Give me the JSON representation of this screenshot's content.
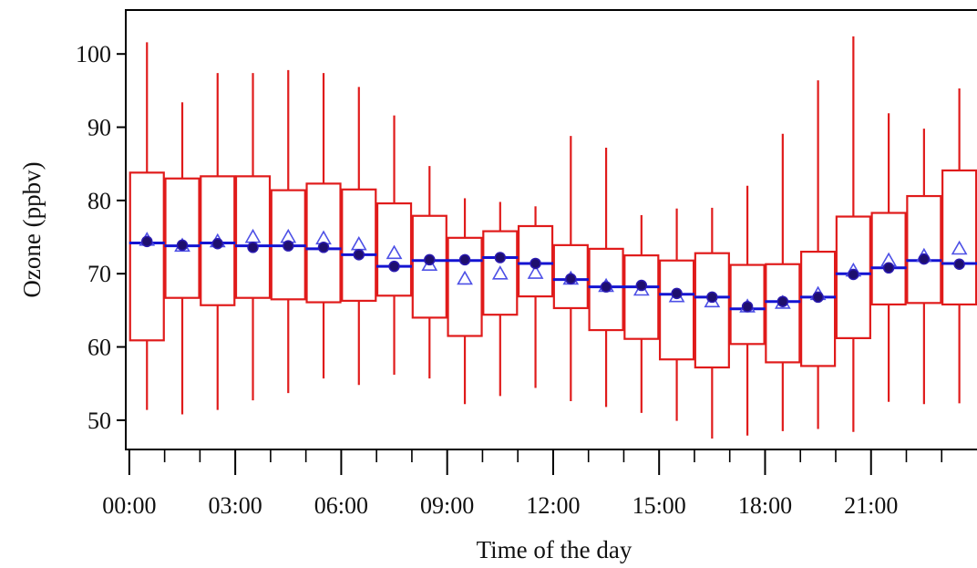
{
  "chart_data": {
    "type": "box",
    "xlabel": "Time of the day",
    "ylabel": "Ozone (ppbv)",
    "ylim": [
      46,
      106
    ],
    "xlim": [
      -0.1,
      24.0
    ],
    "y_ticks": [
      50,
      60,
      70,
      80,
      90,
      100
    ],
    "x_ticks": [
      "00:00",
      "03:00",
      "06:00",
      "09:00",
      "12:00",
      "15:00",
      "18:00",
      "21:00"
    ],
    "x_tick_hours": [
      0,
      3,
      6,
      9,
      12,
      15,
      18,
      21
    ],
    "hours": [
      0.5,
      1.5,
      2.5,
      3.5,
      4.5,
      5.5,
      6.5,
      7.5,
      8.5,
      9.5,
      10.5,
      11.5,
      12.5,
      13.5,
      14.5,
      15.5,
      16.5,
      17.5,
      18.5,
      19.5,
      20.5,
      21.5,
      22.5,
      23.5
    ],
    "whisker_low": [
      51.4,
      50.8,
      51.4,
      52.7,
      53.7,
      55.7,
      54.8,
      56.2,
      55.7,
      52.2,
      53.3,
      54.4,
      52.6,
      51.8,
      51.0,
      49.9,
      47.5,
      47.9,
      48.5,
      48.8,
      48.4,
      52.5,
      52.2,
      52.3
    ],
    "q1": [
      60.9,
      66.7,
      65.7,
      66.7,
      66.5,
      66.1,
      66.3,
      67.0,
      64.0,
      61.5,
      64.4,
      66.9,
      65.3,
      62.3,
      61.1,
      58.3,
      57.2,
      60.4,
      57.9,
      57.4,
      61.2,
      65.8,
      66.0,
      65.8
    ],
    "median": [
      74.2,
      73.8,
      74.2,
      73.8,
      73.8,
      73.4,
      72.6,
      71.0,
      71.8,
      71.8,
      72.2,
      71.4,
      69.2,
      68.2,
      68.2,
      67.2,
      66.8,
      65.2,
      66.2,
      66.8,
      70.0,
      70.8,
      71.8,
      71.4
    ],
    "q3": [
      83.8,
      83.0,
      83.3,
      83.3,
      81.4,
      82.3,
      81.5,
      79.6,
      77.9,
      74.9,
      75.8,
      76.5,
      73.9,
      73.4,
      72.5,
      71.8,
      72.8,
      71.2,
      71.3,
      73.0,
      77.8,
      78.3,
      80.6,
      84.1
    ],
    "whisker_high": [
      101.6,
      93.4,
      97.4,
      97.4,
      97.8,
      97.4,
      95.5,
      91.6,
      84.7,
      80.3,
      79.8,
      79.2,
      88.8,
      87.2,
      78.0,
      78.9,
      79.0,
      82.0,
      89.1,
      96.4,
      102.4,
      91.9,
      89.8,
      95.3
    ],
    "mean": [
      74.4,
      73.9,
      74.1,
      73.6,
      73.8,
      73.6,
      72.6,
      71.0,
      71.9,
      71.9,
      72.2,
      71.4,
      69.3,
      68.2,
      68.4,
      67.3,
      66.8,
      65.5,
      66.2,
      66.8,
      69.9,
      70.8,
      72.0,
      71.3
    ],
    "triangle": [
      74.6,
      73.8,
      74.4,
      75.0,
      75.0,
      74.8,
      74.0,
      72.8,
      71.2,
      69.3,
      70.0,
      70.1,
      69.3,
      68.3,
      67.8,
      66.9,
      66.2,
      65.5,
      66.0,
      67.2,
      70.4,
      71.8,
      72.4,
      73.4
    ],
    "colors": {
      "box": "#e01b1b",
      "median": "#1414d2",
      "mean_marker": "#2a1ab0",
      "mean_marker_fill": "#1e0f6e",
      "triangle": "#4d50e6",
      "axis": "#000000"
    },
    "grid": false,
    "legend": "none"
  }
}
